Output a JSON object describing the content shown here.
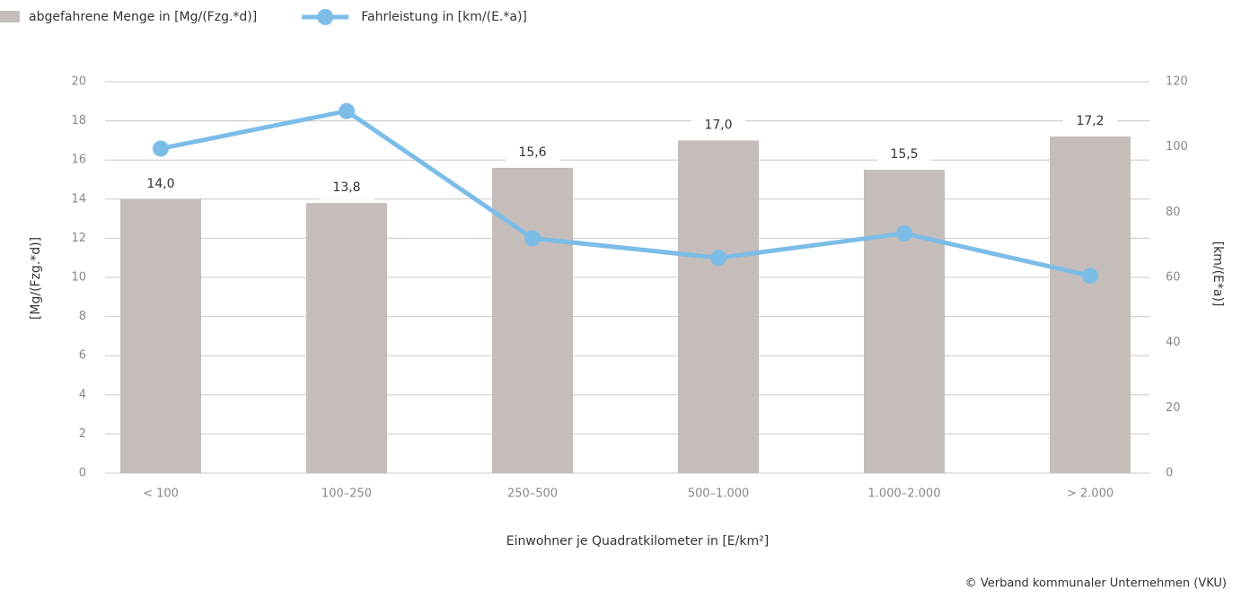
{
  "chart_data": {
    "type": "bar",
    "categories": [
      "< 100",
      "100–250",
      "250–500",
      "500–1.000",
      "1.000–2.000",
      "> 2.000"
    ],
    "series": [
      {
        "name": "abgefahrene Menge in [Mg/(Fzg.*d)]",
        "type": "bar",
        "color": "#c5bdba",
        "axis": "y",
        "values": [
          14.0,
          13.8,
          15.6,
          17.0,
          15.5,
          17.2
        ],
        "value_labels": [
          "14,0",
          "13,8",
          "15,6",
          "17,0",
          "15,5",
          "17,2"
        ]
      },
      {
        "name": "Fahrleistung in [km/(E.*a)]",
        "type": "line",
        "color": "#7cbde8",
        "axis": "y2",
        "values": [
          99.5,
          111,
          72,
          66,
          73.5,
          60.5
        ]
      }
    ],
    "ylim": [
      0,
      20
    ],
    "yticks": [
      0,
      2,
      4,
      6,
      8,
      10,
      12,
      14,
      16,
      18,
      20
    ],
    "y2lim": [
      0,
      120
    ],
    "y2ticks": [
      0,
      20,
      40,
      60,
      80,
      100,
      120
    ],
    "xlabel": "Einwohner je Quadratkilometer in [E/km²]",
    "ylabel": "[Mg/(Fzg.*d)]",
    "y2label": "[km/(E*a)]",
    "grid": true,
    "legend": "top-left",
    "source": "© Verband kommunaler Unternehmen (VKU)"
  }
}
